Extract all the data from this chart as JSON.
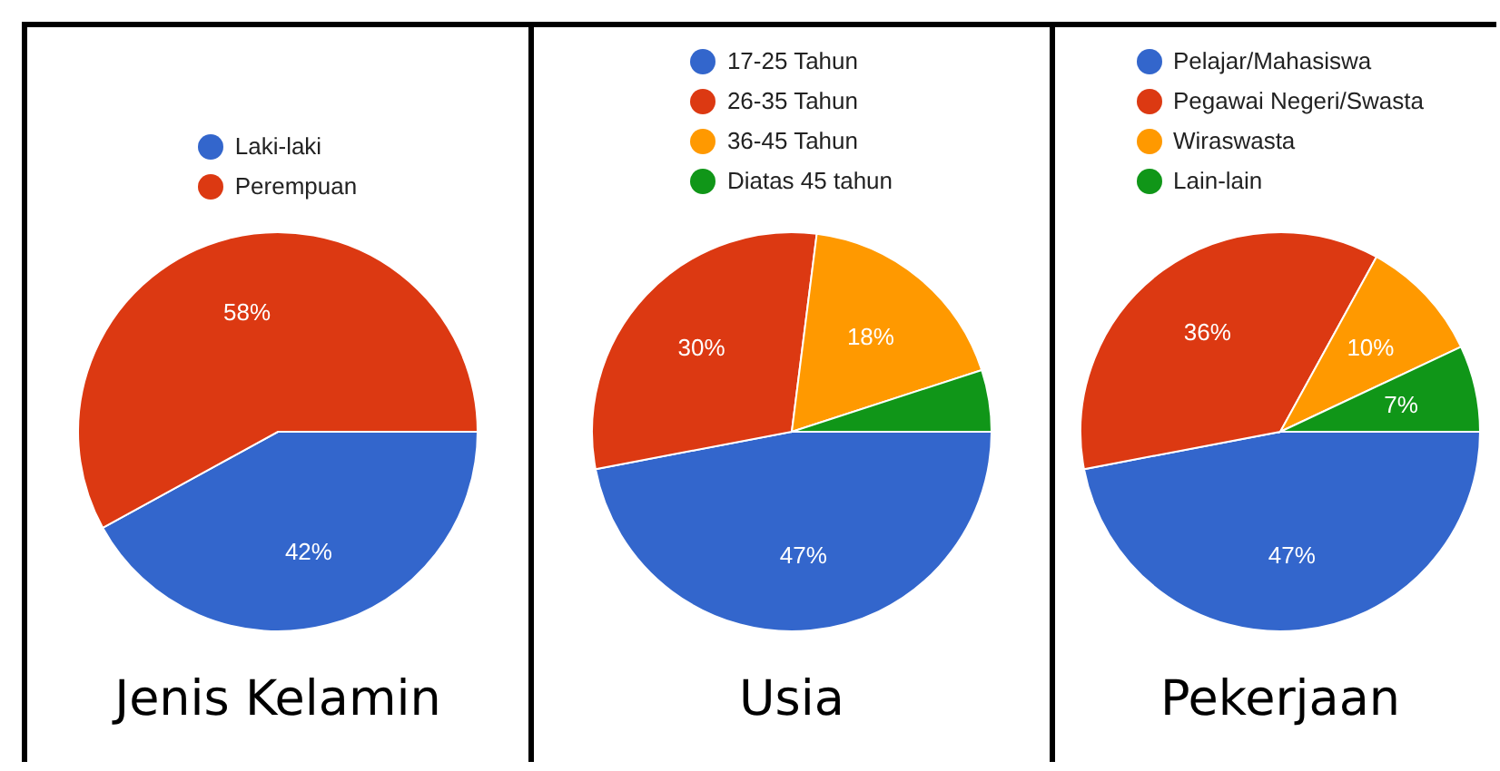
{
  "chart_data": [
    {
      "type": "pie",
      "title": "Jenis Kelamin",
      "categories": [
        "Laki-laki",
        "Perempuan"
      ],
      "values": [
        42,
        58
      ],
      "colors": [
        "#3366cc",
        "#dc3912"
      ],
      "value_labels": [
        "42%",
        "58%"
      ],
      "legend": "top"
    },
    {
      "type": "pie",
      "title": "Usia",
      "categories": [
        "17-25 Tahun",
        "26-35 Tahun",
        "36-45 Tahun",
        "Diatas 45 tahun"
      ],
      "values": [
        47,
        30,
        18,
        5
      ],
      "colors": [
        "#3366cc",
        "#dc3912",
        "#ff9900",
        "#109618"
      ],
      "value_labels": [
        "47%",
        "30%",
        "18%",
        null
      ],
      "legend": "top"
    },
    {
      "type": "pie",
      "title": "Pekerjaan",
      "categories": [
        "Pelajar/Mahasiswa",
        "Pegawai Negeri/Swasta",
        "Wiraswasta",
        "Lain-lain"
      ],
      "values": [
        47,
        36,
        10,
        7
      ],
      "colors": [
        "#3366cc",
        "#dc3912",
        "#ff9900",
        "#109618"
      ],
      "value_labels": [
        "47%",
        "36%",
        "10%",
        "7%"
      ],
      "legend": "top"
    }
  ]
}
